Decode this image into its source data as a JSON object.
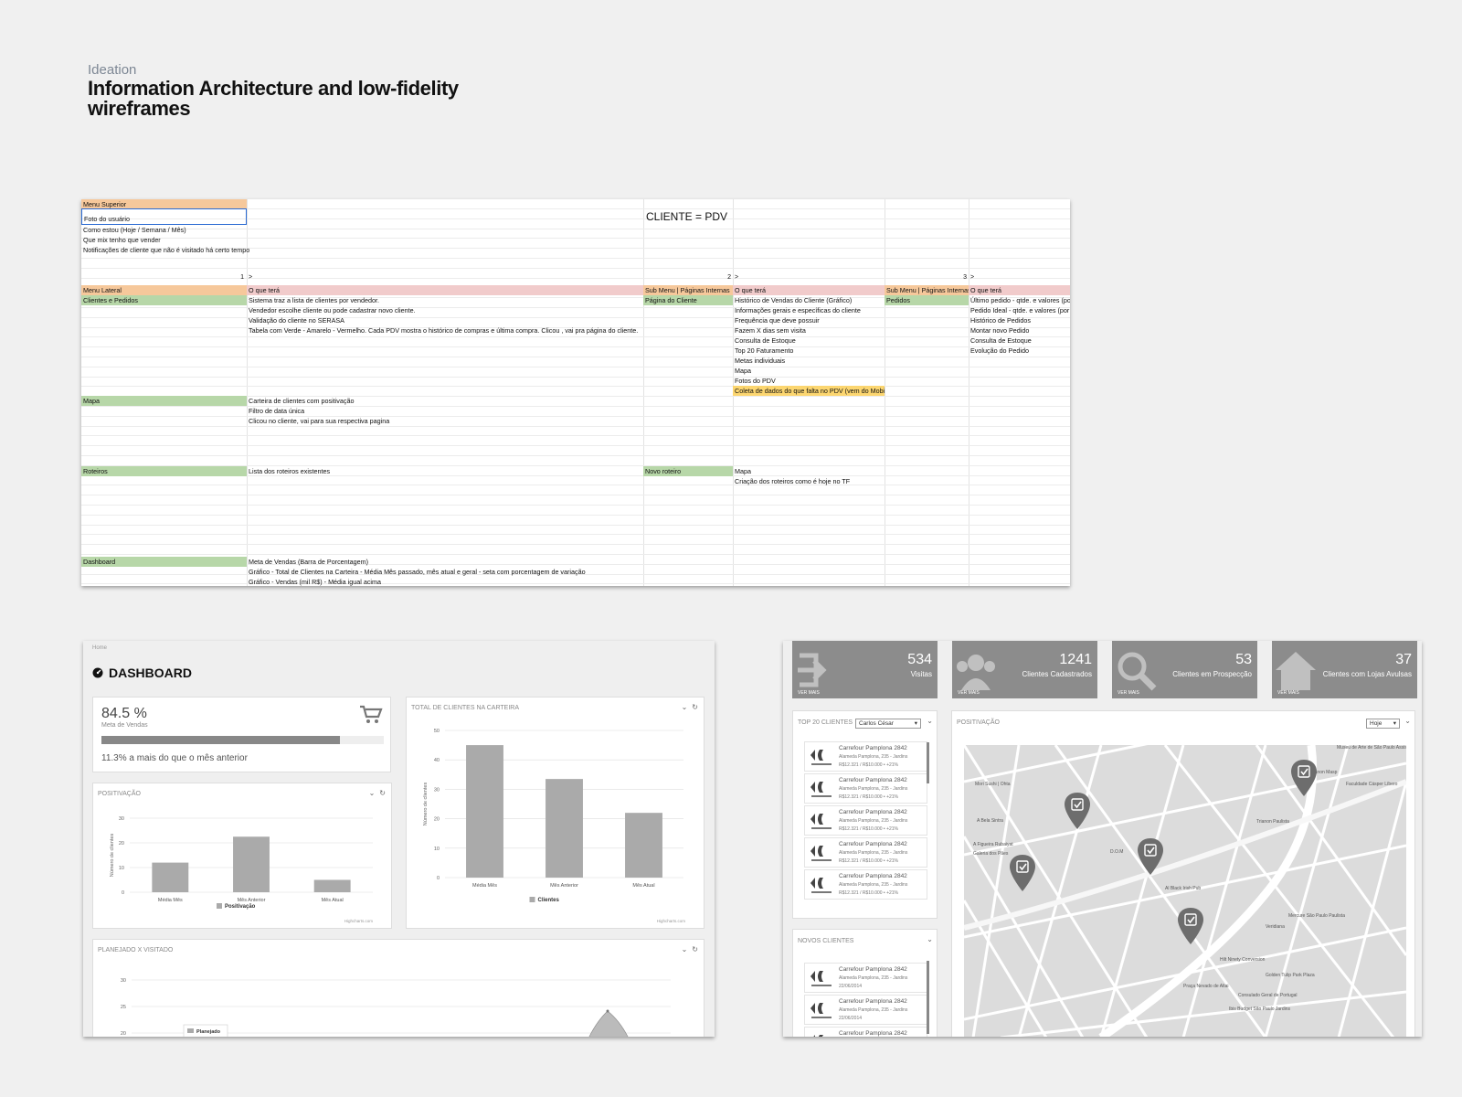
{
  "header": {
    "eyebrow": "Ideation",
    "title": "Information Architecture and low-fidelity wireframes"
  },
  "sheet": {
    "big_label": "CLIENTE = PDV",
    "menu_superior": {
      "header": "Menu Superior",
      "items": [
        "Foto do usuário",
        "Como estou (Hoje / Semana / Mês)",
        "Que mix tenho que vender",
        "Notificações de cliente que não é visitado há certo tempo"
      ]
    },
    "col_numbers": [
      "1",
      ">",
      "2",
      ">",
      "3",
      ">"
    ],
    "headers": [
      "Menu Lateral",
      "O que terá",
      "Sub Menu | Páginas Internas",
      "O que terá",
      "Sub Menu | Páginas Internas",
      "O que terá"
    ],
    "clientes": {
      "label": "Clientes e Pedidos",
      "items": [
        "Sistema traz a lista de clientes por vendedor.",
        "Vendedor escolhe cliente ou pode cadastrar novo cliente.",
        "Validação do cliente no SERASA",
        "Tabela com Verde - Amarelo - Vermelho. Cada PDV mostra o histórico de compras e última compra. Clicou , vai pra página do cliente."
      ],
      "sub_label": "Página do Cliente",
      "sub_items": [
        "Histórico de Vendas do Cliente (Gráfico)",
        "Informações gerais e específicas do cliente",
        "Frequência que deve possuir",
        "Fazem X dias sem visita",
        "Consulta de Estoque",
        "Top 20 Faturamento",
        "Metas individuais",
        "Mapa",
        "Fotos do PDV",
        "Coleta de dados do que falta no PDV (vem do Mobile)"
      ],
      "sub2_label": "Pedidos",
      "sub2_items": [
        "Último pedido - qtde. e valores (po",
        "Pedido Ideal  - qtde. e valores (por",
        "Histórico de Pedidos",
        "Montar novo Pedido",
        "Consulta de Estoque",
        "Evolução do Pedido"
      ]
    },
    "mapa": {
      "label": "Mapa",
      "items": [
        "Carteira de clientes com positivação",
        "Filtro de data única",
        "Clicou no cliente, vai para sua respectiva pagina"
      ]
    },
    "roteiros": {
      "label": "Roteiros",
      "items": [
        "Lista dos roteiros existentes"
      ],
      "sub_label": "Novo roteiro",
      "sub_items": [
        "Mapa",
        "Criação dos roteiros como é hoje no TF"
      ]
    },
    "dashboard": {
      "label": "Dashboard",
      "items": [
        "Meta de Vendas (Barra de Porcentagem)",
        "Gráfico - Total de Clientes na Carteira - Média Mês passado, mês atual e geral - seta com porcentagem de variação",
        "Gráfico - Vendas (mil R$) - Média igual acima"
      ]
    }
  },
  "dashboard": {
    "breadcrumb": "Home",
    "title": "DASHBOARD",
    "meta": {
      "value": "84.5 %",
      "label": "Meta de Vendas",
      "progress": 0.845,
      "note": "11.3% a mais do que o mês anterior"
    },
    "footer_credit": "Highcharts.com"
  },
  "chart_data": [
    {
      "type": "bar",
      "title": "POSITIVAÇÃO",
      "categories": [
        "Média Mês",
        "Mês Anterior",
        "Mês Atual"
      ],
      "series": [
        {
          "name": "Positivação",
          "values": [
            12,
            22.5,
            5
          ]
        }
      ],
      "ylabel": "Número de clientes",
      "ylim": [
        0,
        30
      ],
      "yticks": [
        "0",
        "10",
        "20",
        "30"
      ],
      "legend": "bottom"
    },
    {
      "type": "bar",
      "title": "TOTAL DE CLIENTES NA CARTEIRA",
      "categories": [
        "Média Mês",
        "Mês Anterior",
        "Mês Atual"
      ],
      "series": [
        {
          "name": "Clientes",
          "values": [
            45,
            33.5,
            22
          ]
        }
      ],
      "ylabel": "Número de clientes",
      "ylim": [
        0,
        50
      ],
      "yticks": [
        "0",
        "10",
        "20",
        "30",
        "40",
        "50"
      ],
      "legend": "bottom"
    },
    {
      "type": "area",
      "title": "PLANEJADO X VISITADO",
      "yticks": [
        "20",
        "25",
        "30"
      ],
      "ylim": [
        20,
        30
      ],
      "series": [
        {
          "name": "Planejado"
        }
      ],
      "legend": "inside-left"
    }
  ],
  "stats": [
    {
      "value": "534",
      "label": "Visitas",
      "more": "VER MAIS",
      "icon": "sign-in-icon"
    },
    {
      "value": "1241",
      "label": "Clientes Cadastrados",
      "more": "VER MAIS",
      "icon": "users-icon"
    },
    {
      "value": "53",
      "label": "Clientes em Prospecção",
      "more": "VER MAIS",
      "icon": "search-icon"
    },
    {
      "value": "37",
      "label": "Clientes com Lojas Avulsas",
      "more": "VER MAIS",
      "icon": "home-icon"
    }
  ],
  "top20": {
    "title": "TOP 20 CLIENTES",
    "selected": "Carlos César",
    "items": [
      {
        "name": "Carrefour Pamplona 2842",
        "addr": "Alameda Pamplona, 235 - Jardins",
        "value": "R$12.321 / R$10.000 • +21%"
      },
      {
        "name": "Carrefour Pamplona 2842",
        "addr": "Alameda Pamplona, 235 - Jardins",
        "value": "R$12.321 / R$10.000 • +21%"
      },
      {
        "name": "Carrefour Pamplona 2842",
        "addr": "Alameda Pamplona, 235 - Jardins",
        "value": "R$12.321 / R$10.000 • +21%"
      },
      {
        "name": "Carrefour Pamplona 2842",
        "addr": "Alameda Pamplona, 235 - Jardins",
        "value": "R$12.321 / R$10.000 • +21%"
      },
      {
        "name": "Carrefour Pamplona 2842",
        "addr": "Alameda Pamplona, 235 - Jardins",
        "value": "R$12.321 / R$10.000 • +21%"
      }
    ]
  },
  "novos": {
    "title": "NOVOS CLIENTES",
    "items": [
      {
        "name": "Carrefour Pamplona 2842",
        "addr": "Alameda Pamplona, 235 - Jardins",
        "value": "22/06/2014"
      },
      {
        "name": "Carrefour Pamplona 2842",
        "addr": "Alameda Pamplona, 235 - Jardins",
        "value": "22/06/2014"
      },
      {
        "name": "Carrefour Pamplona 2842",
        "addr": "",
        "value": ""
      }
    ]
  },
  "positivacao_map": {
    "title": "POSITIVAÇÃO",
    "selected": "Hoje",
    "labels": [
      "Museu de Arte de São Paulo Assis...",
      "Trianon Masp",
      "Faculdade Cásper Líbero",
      "Mori Sushi | Ohta",
      "Trianon Paulista",
      "A Bela Sintra",
      "D.O.M",
      "A Figueira Rubaiyat",
      "Galeria dos Pães",
      "Al Black Irish Pub",
      "Mercure São Paulo Paulista",
      "Veridiana",
      "Consulado Geral de Portugal",
      "Ibis Budget São Paulo Jardins",
      "Golden Tulip Park Plaza",
      "Hilt Ninety Conversion",
      "Praça Nevado de Altai"
    ]
  },
  "colors": {
    "bar": "#aaaaaa",
    "stat": "#8c8c8c",
    "header_orange": "#f6c89b",
    "header_green": "#b7d7a8",
    "header_pink": "#f1cbcb",
    "highlight": "#fcd670"
  }
}
